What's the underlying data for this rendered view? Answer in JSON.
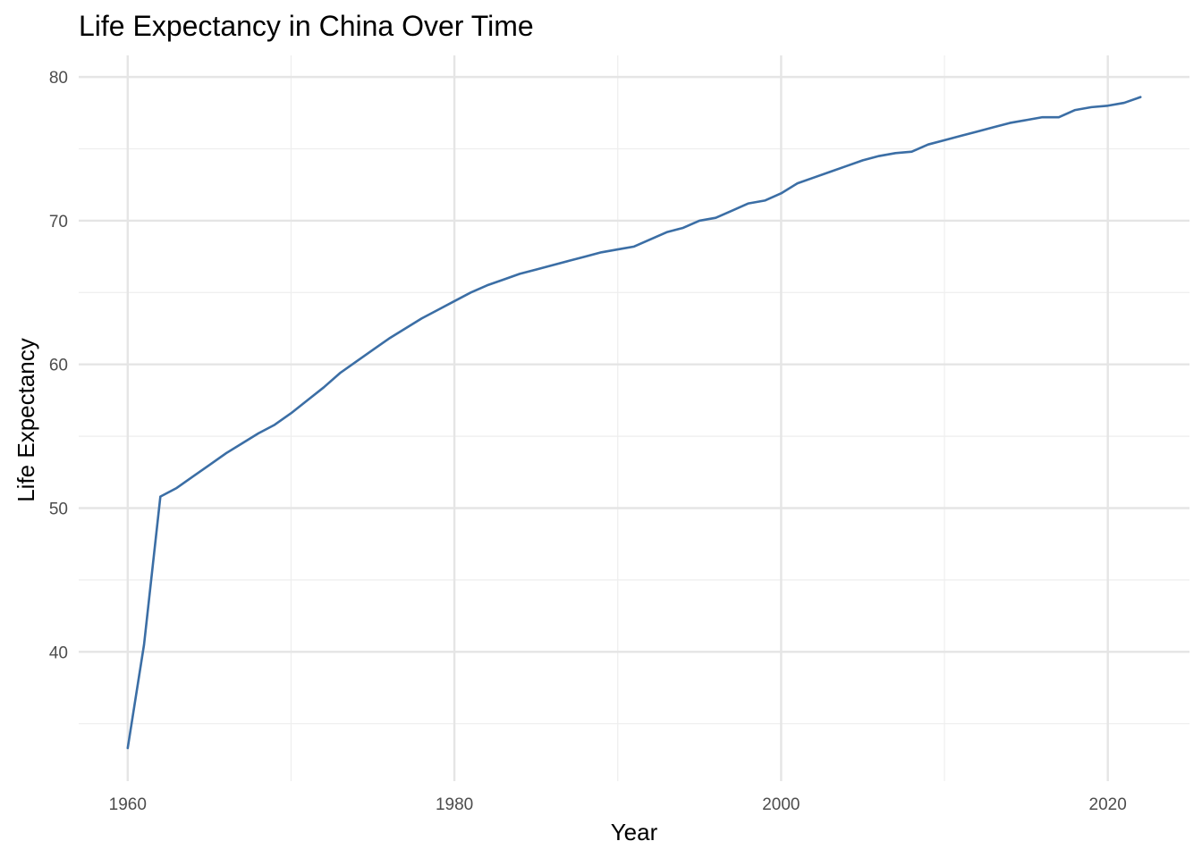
{
  "chart_data": {
    "type": "line",
    "title": "Life Expectancy in China Over Time",
    "xlabel": "Year",
    "ylabel": "Life Expectancy",
    "xlim": [
      1957,
      2025
    ],
    "ylim": [
      31,
      81.5
    ],
    "x_ticks": [
      1960,
      1980,
      2000,
      2020
    ],
    "x_minor_ticks": [
      1970,
      1990,
      2010
    ],
    "y_ticks": [
      40,
      50,
      60,
      70,
      80
    ],
    "y_minor_ticks": [
      35,
      45,
      55,
      65,
      75
    ],
    "x_tick_labels": [
      "1960",
      "1980",
      "2000",
      "2020"
    ],
    "y_tick_labels": [
      "40",
      "50",
      "60",
      "70",
      "80"
    ],
    "grid": true,
    "legend": "none",
    "line_color": "#3b6ea5",
    "series": [
      {
        "x": [
          1960,
          1961,
          1962,
          1963,
          1964,
          1965,
          1966,
          1967,
          1968,
          1969,
          1970,
          1971,
          1972,
          1973,
          1974,
          1975,
          1976,
          1977,
          1978,
          1979,
          1980,
          1981,
          1982,
          1983,
          1984,
          1985,
          1986,
          1987,
          1988,
          1989,
          1990,
          1991,
          1992,
          1993,
          1994,
          1995,
          1996,
          1997,
          1998,
          1999,
          2000,
          2001,
          2002,
          2003,
          2004,
          2005,
          2006,
          2007,
          2008,
          2009,
          2010,
          2011,
          2012,
          2013,
          2014,
          2015,
          2016,
          2017,
          2018,
          2019,
          2020,
          2021,
          2022
        ],
        "values": [
          33.3,
          40.5,
          50.8,
          51.4,
          52.2,
          53.0,
          53.8,
          54.5,
          55.2,
          55.8,
          56.6,
          57.5,
          58.4,
          59.4,
          60.2,
          61.0,
          61.8,
          62.5,
          63.2,
          63.8,
          64.4,
          65.0,
          65.5,
          65.9,
          66.3,
          66.6,
          66.9,
          67.2,
          67.5,
          67.8,
          68.0,
          68.2,
          68.7,
          69.2,
          69.5,
          70.0,
          70.2,
          70.7,
          71.2,
          71.4,
          71.9,
          72.6,
          73.0,
          73.4,
          73.8,
          74.2,
          74.5,
          74.7,
          74.8,
          75.3,
          75.6,
          75.9,
          76.2,
          76.5,
          76.8,
          77.0,
          77.2,
          77.2,
          77.7,
          77.9,
          78.0,
          78.2,
          78.6
        ]
      }
    ]
  }
}
